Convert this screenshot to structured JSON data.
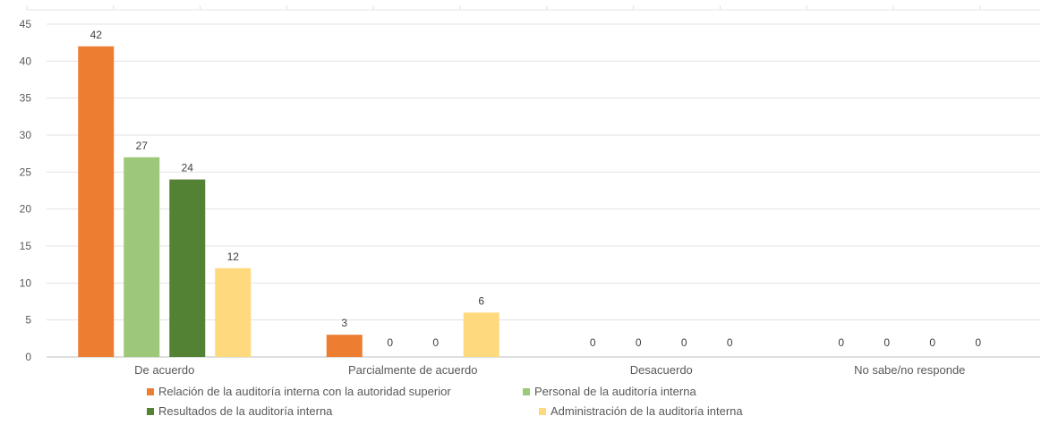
{
  "chart_data": {
    "type": "bar",
    "categories": [
      "De acuerdo",
      "Parcialmente de acuerdo",
      "Desacuerdo",
      "No sabe/no responde"
    ],
    "series": [
      {
        "name": "Relación de la auditoría interna con la autoridad superior",
        "color": "#ED7D31",
        "values": [
          42,
          3,
          0,
          0
        ]
      },
      {
        "name": "Personal de la auditoría interna",
        "color": "#9DC87A",
        "values": [
          27,
          0,
          0,
          0
        ]
      },
      {
        "name": "Resultados de la auditoría interna",
        "color": "#548235",
        "values": [
          24,
          0,
          0,
          0
        ]
      },
      {
        "name": "Administración de la auditoría interna",
        "color": "#FFD97D",
        "values": [
          12,
          6,
          0,
          0
        ]
      }
    ],
    "ylim": [
      0,
      45
    ],
    "yticks": [
      0,
      5,
      10,
      15,
      20,
      25,
      30,
      35,
      40,
      45
    ],
    "grid": true,
    "data_labels": true,
    "legend_position": "bottom"
  }
}
